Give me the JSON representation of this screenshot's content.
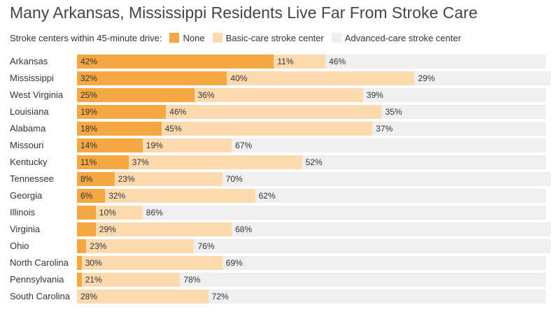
{
  "title": "Many Arkansas, Mississippi Residents Live Far From Stroke Care",
  "legend": {
    "heading": "Stroke centers within 45-minute drive:",
    "items": [
      {
        "label": "None",
        "color": "#f5a742"
      },
      {
        "label": "Basic-care stroke center",
        "color": "#fdd9ae"
      },
      {
        "label": "Advanced-care stroke center",
        "color": "#efefef"
      }
    ]
  },
  "chart_data": {
    "type": "bar",
    "orientation": "horizontal",
    "stacked": true,
    "title": "Many Arkansas, Mississippi Residents Live Far From Stroke Care",
    "xlim": [
      0,
      100
    ],
    "grid": false,
    "legend_position": "top",
    "categories": [
      "Arkansas",
      "Mississippi",
      "West Virginia",
      "Louisiana",
      "Alabama",
      "Missouri",
      "Kentucky",
      "Tennessee",
      "Georgia",
      "Illinois",
      "Virginia",
      "Ohio",
      "North Carolina",
      "Pennsylvania",
      "South Carolina"
    ],
    "series": [
      {
        "name": "None",
        "color": "#f5a742",
        "values": [
          42,
          32,
          25,
          19,
          18,
          14,
          11,
          8,
          6,
          4,
          4,
          2,
          1,
          1,
          0
        ],
        "labels": [
          "42%",
          "32%",
          "25%",
          "19%",
          "18%",
          "14%",
          "11%",
          "8%",
          "6%",
          "",
          "",
          "",
          "",
          "",
          ""
        ]
      },
      {
        "name": "Basic-care stroke center",
        "color": "#fdd9ae",
        "values": [
          11,
          40,
          36,
          46,
          45,
          19,
          37,
          23,
          32,
          10,
          29,
          23,
          30,
          21,
          28
        ],
        "labels": [
          "11%",
          "40%",
          "36%",
          "46%",
          "45%",
          "19%",
          "37%",
          "23%",
          "32%",
          "10%",
          "29%",
          "23%",
          "30%",
          "21%",
          "28%"
        ]
      },
      {
        "name": "Advanced-care stroke center",
        "color": "#efefef",
        "values": [
          46,
          29,
          39,
          35,
          37,
          67,
          52,
          70,
          62,
          86,
          68,
          76,
          69,
          78,
          72
        ],
        "labels": [
          "46%",
          "29%",
          "39%",
          "35%",
          "37%",
          "67%",
          "52%",
          "70%",
          "62%",
          "86%",
          "68%",
          "76%",
          "69%",
          "78%",
          "72%"
        ]
      }
    ]
  }
}
